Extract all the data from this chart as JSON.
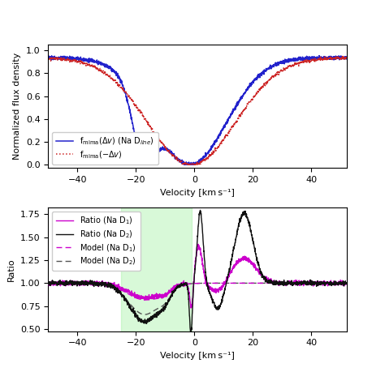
{
  "top_panel": {
    "ylabel": "Normalized flux density",
    "xlabel": "Velocity [km s⁻¹]",
    "xlim": [
      -50,
      52
    ],
    "ylim": [
      -0.03,
      1.05
    ],
    "yticks": [
      0.0,
      0.2,
      0.4,
      0.6,
      0.8,
      1.0
    ],
    "xticks": [
      -40,
      -20,
      0,
      20,
      40
    ],
    "line1_color": "#2222cc",
    "line2_color": "#cc2222",
    "line1_label": "f$_{\\rm mima}$($\\Delta v$) (Na D$_{\\it line}$)",
    "line2_label": "f$_{\\rm mima}$($-\\Delta v$)"
  },
  "bottom_panel": {
    "ylabel": "Ratio",
    "xlabel": "Velocity [km s⁻¹]",
    "xlim": [
      -50,
      52
    ],
    "ylim": [
      0.48,
      1.82
    ],
    "yticks": [
      0.5,
      0.75,
      1.0,
      1.25,
      1.5,
      1.75
    ],
    "xticks": [
      -40,
      -20,
      0,
      20,
      40
    ],
    "shade_xmin": -25,
    "shade_xmax": -1,
    "shade_color": "#90ee90",
    "shade_alpha": 0.35,
    "ratio_d1_color": "#cc00cc",
    "ratio_d2_color": "#111111",
    "model_d1_color": "#cc00cc",
    "model_d2_color": "#555555",
    "ratio_d1_label": "Ratio (Na D$_1$)",
    "ratio_d2_label": "Ratio (Na D$_2$)",
    "model_d1_label": "Model (Na D$_1$)",
    "model_d2_label": "Model (Na D$_2$)"
  }
}
